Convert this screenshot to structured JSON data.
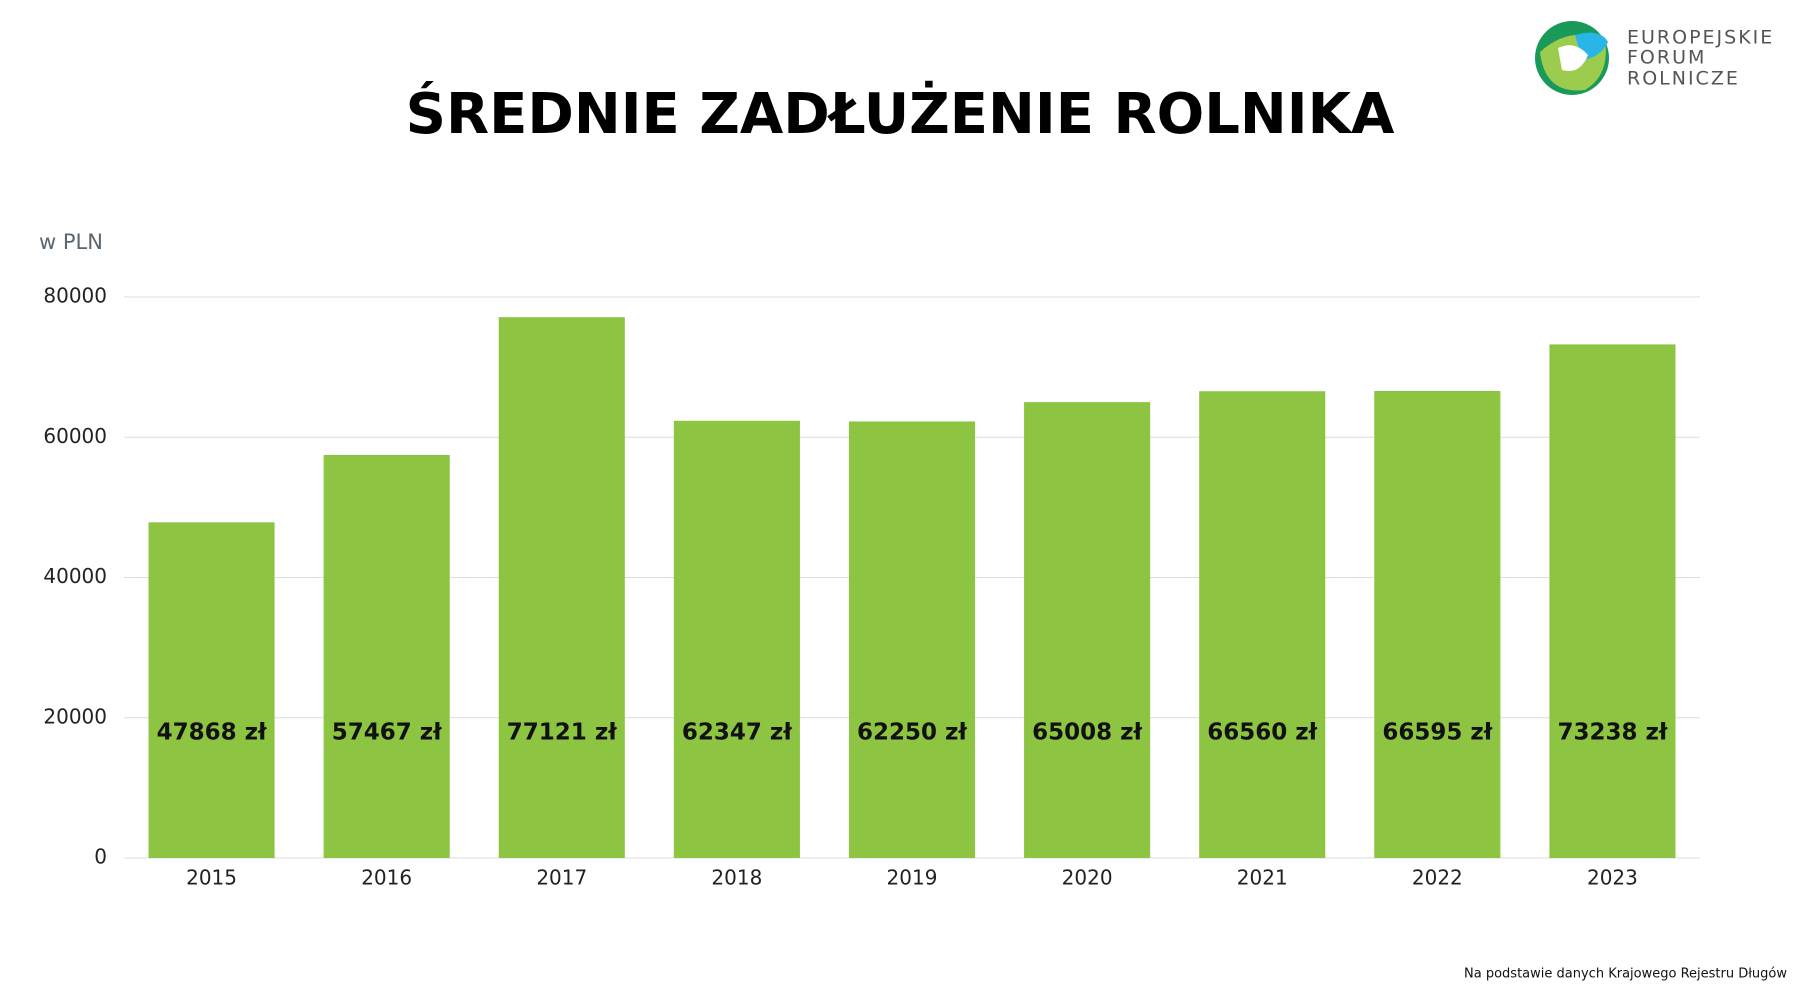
{
  "chart_data": {
    "type": "bar",
    "title": "ŚREDNIE ZADŁUŻENIE ROLNIKA",
    "y_axis_label": "w PLN",
    "categories": [
      "2015",
      "2016",
      "2017",
      "2018",
      "2019",
      "2020",
      "2021",
      "2022",
      "2023"
    ],
    "values": [
      47868,
      57467,
      77121,
      62347,
      62250,
      65008,
      66560,
      66595,
      73238
    ],
    "value_labels": [
      "47868 zł",
      "57467 zł",
      "77121 zł",
      "62347 zł",
      "62250 zł",
      "65008 zł",
      "66560 zł",
      "66595 zł",
      "73238 zł"
    ],
    "color": "#8dc441",
    "ylim": [
      0,
      80000
    ],
    "yticks": [
      0,
      20000,
      40000,
      60000,
      80000
    ],
    "grid": true,
    "source": "Na podstawie danych Krajowego Rejestru Długów"
  },
  "logo": {
    "lines": [
      "EUROPEJSKIE",
      "FORUM",
      "ROLNICZE"
    ]
  }
}
